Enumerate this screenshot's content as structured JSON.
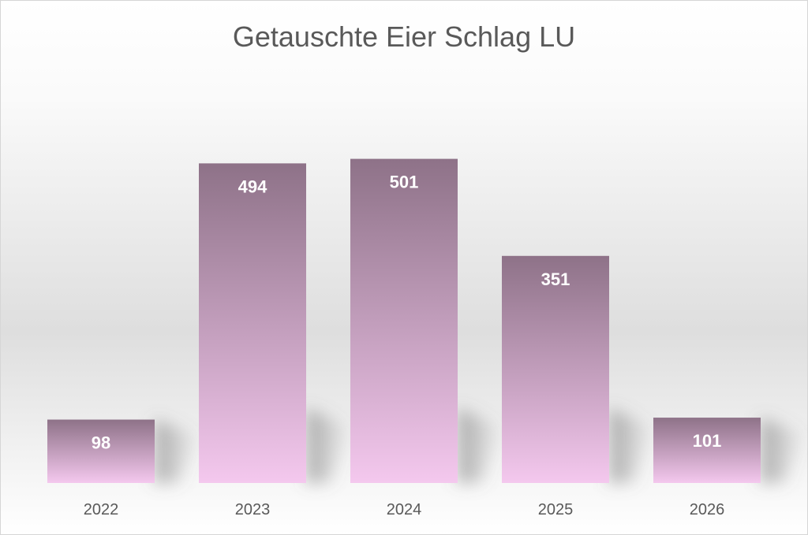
{
  "chart_data": {
    "type": "bar",
    "title": "Getauschte Eier Schlag LU",
    "categories": [
      "2022",
      "2023",
      "2024",
      "2025",
      "2026"
    ],
    "values": [
      98,
      494,
      501,
      351,
      101
    ],
    "ylim": [
      0,
      520
    ],
    "grid": false,
    "legend": "none",
    "data_labels": "inside-end",
    "colors": {
      "bar_top": "#8e7288",
      "bar_bottom": "#f4c8ee",
      "label": "#ffffff",
      "axis_text": "#595959"
    }
  }
}
